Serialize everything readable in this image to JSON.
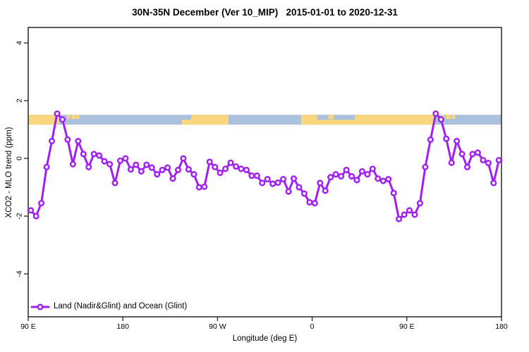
{
  "title": "30N-35N December (Ver 10_MIP)   2015-01-01 to 2020-12-31",
  "legend": {
    "label": "Land (Nadir&Glint) and Ocean (Glint)"
  },
  "axes": {
    "x": {
      "title": "Longitude (deg E)",
      "ticks": [
        90,
        180,
        270,
        360,
        450,
        540
      ],
      "tick_labels": [
        "90 E",
        "180",
        "90 W",
        "0",
        "90 E",
        "180"
      ],
      "range": [
        90,
        540
      ]
    },
    "y": {
      "title": "XCO2 - MLO trend (ppm)",
      "ticks": [
        4,
        2,
        0,
        -2,
        -4
      ],
      "tick_labels": [
        "4",
        "2",
        "0",
        "-2",
        "-4"
      ],
      "range": [
        -5.5,
        4.6
      ]
    }
  },
  "colors": {
    "line": "#A020F0",
    "marker_fill": "#ffffff",
    "ocean": "#aac1de",
    "land": "#fad67f",
    "axis": "#333333",
    "background": "#ffffff"
  },
  "map_strip": {
    "meaning": "land-ocean mask along 30N-35N latitude band",
    "y_top_value": 1.51,
    "y_bottom_value": 1.17,
    "land_segments": [
      {
        "from": 90,
        "to": 119.5,
        "part": "full"
      },
      {
        "from": 127,
        "to": 129.5,
        "part": "top"
      },
      {
        "from": 131,
        "to": 135,
        "part": "top"
      },
      {
        "from": 135.5,
        "to": 138.5,
        "part": "top"
      },
      {
        "from": 236,
        "to": 245,
        "part": "bottom"
      },
      {
        "from": 245,
        "to": 280.5,
        "part": "full"
      },
      {
        "from": 349.5,
        "to": 365,
        "part": "full"
      },
      {
        "from": 365,
        "to": 400.5,
        "part": "bottom"
      },
      {
        "from": 375.5,
        "to": 380.5,
        "part": "top"
      },
      {
        "from": 400.5,
        "to": 477,
        "part": "full"
      },
      {
        "from": 482.5,
        "to": 485.5,
        "part": "top"
      },
      {
        "from": 487,
        "to": 492,
        "part": "top"
      },
      {
        "from": 493,
        "to": 496,
        "part": "top"
      }
    ]
  },
  "chart_data": {
    "type": "line",
    "title": "30N-35N December (Ver 10_MIP)   2015-01-01 to 2020-12-31",
    "xlabel": "Longitude (deg E)",
    "ylabel": "XCO2 - MLO trend (ppm)",
    "series_name": "Land (Nadir&Glint) and Ocean (Glint)",
    "marker": "open-circle",
    "xlim": [
      90,
      540
    ],
    "ylim": [
      -5.5,
      4.6
    ],
    "x_ticks": [
      90,
      180,
      270,
      360,
      450,
      540
    ],
    "x_tick_labels": [
      "90 E",
      "180",
      "90 W",
      "0",
      "90 E",
      "180"
    ],
    "y_ticks": [
      4,
      2,
      0,
      -2,
      -4
    ],
    "grid": false,
    "legend_position": "bottom-left-inside",
    "x": [
      92.5,
      97.5,
      102.5,
      107.5,
      112.5,
      117.5,
      122.5,
      127.5,
      132.5,
      137.5,
      142.5,
      147.5,
      152.5,
      157.5,
      162.5,
      167.5,
      172.5,
      177.5,
      182.5,
      187.5,
      192.5,
      197.5,
      202.5,
      207.5,
      212.5,
      217.5,
      222.5,
      227.5,
      232.5,
      237.5,
      242.5,
      247.5,
      252.5,
      257.5,
      262.5,
      267.5,
      272.5,
      277.5,
      282.5,
      287.5,
      292.5,
      297.5,
      302.5,
      307.5,
      312.5,
      317.5,
      322.5,
      327.5,
      332.5,
      337.5,
      342.5,
      347.5,
      352.5,
      357.5,
      362.5,
      367.5,
      372.5,
      377.5,
      382.5,
      387.5,
      392.5,
      397.5,
      402.5,
      407.5,
      412.5,
      417.5,
      422.5,
      427.5,
      432.5,
      437.5,
      442.5,
      447.5,
      452.5,
      457.5,
      462.5,
      467.5,
      472.5,
      477.5,
      482.5,
      487.5,
      492.5,
      497.5,
      502.5,
      507.5,
      512.5,
      517.5,
      522.5,
      527.5,
      532.5,
      537.5
    ],
    "values": [
      -1.8,
      -2.0,
      -1.55,
      -0.3,
      0.6,
      1.55,
      1.35,
      0.65,
      -0.2,
      0.6,
      0.15,
      -0.3,
      0.15,
      0.1,
      -0.1,
      -0.2,
      -0.85,
      -0.08,
      0.0,
      -0.38,
      -0.22,
      -0.45,
      -0.22,
      -0.32,
      -0.55,
      -0.4,
      -0.32,
      -0.7,
      -0.4,
      0.0,
      -0.38,
      -0.55,
      -1.0,
      -0.98,
      -0.12,
      -0.3,
      -0.5,
      -0.36,
      -0.15,
      -0.28,
      -0.36,
      -0.4,
      -0.6,
      -0.6,
      -0.85,
      -0.72,
      -0.88,
      -0.84,
      -0.72,
      -1.15,
      -0.7,
      -1.0,
      -1.22,
      -1.52,
      -1.55,
      -0.85,
      -1.12,
      -0.65,
      -0.55,
      -0.62,
      -0.4,
      -0.62,
      -0.75,
      -0.45,
      -0.55,
      -0.36,
      -0.7,
      -0.78,
      -0.72,
      -1.2,
      -2.1,
      -1.95,
      -1.8,
      -1.95,
      -1.55,
      -0.3,
      0.65,
      1.55,
      1.35,
      0.68,
      -0.15,
      0.6,
      0.15,
      -0.3,
      0.15,
      0.2,
      -0.06,
      -0.16,
      -0.85,
      -0.06
    ]
  }
}
